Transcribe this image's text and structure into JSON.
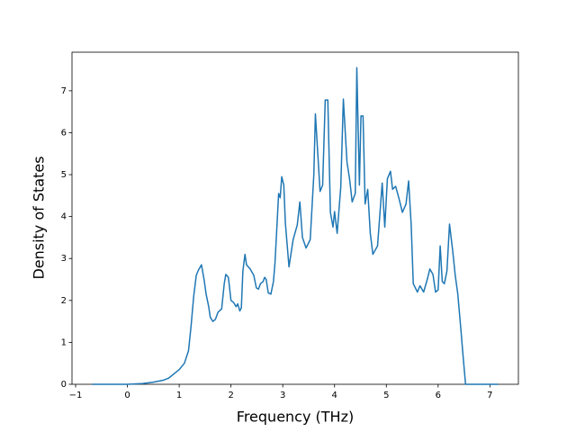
{
  "chart_data": {
    "type": "line",
    "x_label": "Frequency (THz)",
    "y_label": "Density of States",
    "color": "#1f77b4",
    "x": [
      -0.68,
      0,
      0.3,
      0.5,
      0.7,
      0.8,
      0.9,
      1.0,
      1.1,
      1.18,
      1.23,
      1.28,
      1.33,
      1.37,
      1.43,
      1.48,
      1.52,
      1.57,
      1.6,
      1.65,
      1.7,
      1.75,
      1.82,
      1.87,
      1.9,
      1.95,
      2.0,
      2.05,
      2.1,
      2.13,
      2.17,
      2.2,
      2.23,
      2.27,
      2.3,
      2.37,
      2.44,
      2.49,
      2.53,
      2.57,
      2.62,
      2.65,
      2.68,
      2.72,
      2.77,
      2.82,
      2.85,
      2.88,
      2.92,
      2.95,
      2.98,
      3.02,
      3.05,
      3.12,
      3.2,
      3.28,
      3.33,
      3.38,
      3.45,
      3.53,
      3.6,
      3.63,
      3.72,
      3.77,
      3.82,
      3.87,
      3.92,
      3.97,
      4.0,
      4.05,
      4.12,
      4.17,
      4.24,
      4.29,
      4.34,
      4.4,
      4.43,
      4.48,
      4.51,
      4.55,
      4.59,
      4.64,
      4.69,
      4.74,
      4.83,
      4.92,
      4.97,
      5.02,
      5.08,
      5.12,
      5.18,
      5.24,
      5.31,
      5.38,
      5.43,
      5.48,
      5.52,
      5.6,
      5.65,
      5.72,
      5.79,
      5.84,
      5.9,
      5.95,
      6.0,
      6.04,
      6.08,
      6.12,
      6.17,
      6.22,
      6.28,
      6.33,
      6.38,
      6.44,
      6.48,
      6.53,
      7.16
    ],
    "values": [
      0,
      0,
      0.02,
      0.05,
      0.1,
      0.15,
      0.25,
      0.35,
      0.5,
      0.8,
      1.4,
      2.1,
      2.6,
      2.72,
      2.85,
      2.5,
      2.15,
      1.85,
      1.6,
      1.5,
      1.55,
      1.72,
      1.8,
      2.4,
      2.62,
      2.55,
      2.0,
      1.95,
      1.85,
      1.92,
      1.75,
      1.82,
      2.7,
      3.1,
      2.85,
      2.75,
      2.6,
      2.3,
      2.27,
      2.4,
      2.45,
      2.55,
      2.5,
      2.18,
      2.15,
      2.45,
      2.9,
      3.6,
      4.55,
      4.45,
      4.95,
      4.75,
      3.85,
      2.8,
      3.45,
      3.8,
      4.35,
      3.5,
      3.25,
      3.45,
      5.0,
      6.45,
      4.6,
      4.75,
      6.78,
      6.78,
      4.1,
      3.75,
      4.12,
      3.6,
      4.7,
      6.8,
      5.3,
      4.9,
      4.35,
      4.55,
      7.55,
      4.75,
      6.4,
      6.4,
      4.3,
      4.65,
      3.6,
      3.1,
      3.3,
      4.8,
      3.75,
      4.9,
      5.08,
      4.65,
      4.72,
      4.45,
      4.1,
      4.3,
      4.85,
      3.8,
      2.4,
      2.2,
      2.35,
      2.2,
      2.5,
      2.75,
      2.62,
      2.2,
      2.25,
      3.3,
      2.45,
      2.4,
      2.7,
      3.82,
      3.2,
      2.6,
      2.15,
      1.3,
      0.7,
      0,
      0
    ],
    "xlim": [
      -1.07,
      7.55
    ],
    "ylim": [
      0,
      7.92
    ],
    "xticks": [
      {
        "value": -1,
        "label": "−1"
      },
      0,
      1,
      2,
      3,
      4,
      5,
      6,
      7
    ],
    "yticks": [
      0,
      1,
      2,
      3,
      4,
      5,
      6,
      7
    ]
  }
}
